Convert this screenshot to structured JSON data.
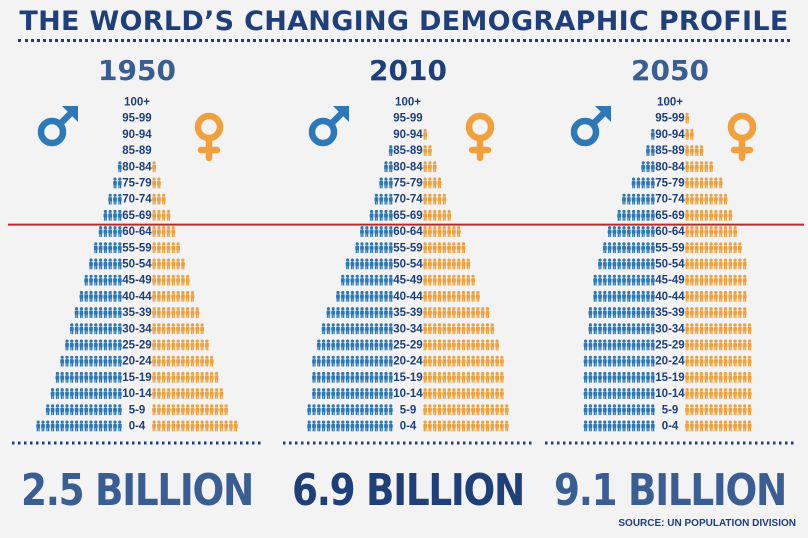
{
  "title": "THE WORLD’S CHANGING DEMOGRAPHIC PROFILE",
  "source": "SOURCE: UN POPULATION DIVISION",
  "colors": {
    "male": "#2e78b8",
    "female": "#f0a03c",
    "title": "#1e3f7a",
    "total": "#3a5e94",
    "total_highlight": "#1e3f7a",
    "divider": "#c8232c"
  },
  "icons": {
    "male": "male-symbol-icon",
    "female": "female-symbol-icon",
    "person": "person-icon"
  },
  "chart_data": {
    "type": "population-pyramid",
    "unit": "person icons per age group",
    "divider_between": [
      "65-69",
      "60-64"
    ],
    "age_groups": [
      "100+",
      "95-99",
      "90-94",
      "85-89",
      "80-84",
      "75-79",
      "70-74",
      "65-69",
      "60-64",
      "55-59",
      "50-54",
      "45-49",
      "40-44",
      "35-39",
      "30-34",
      "25-29",
      "20-24",
      "15-19",
      "10-14",
      "5-9",
      "0-4"
    ],
    "panels": [
      {
        "year": "1950",
        "total": "2.5 BILLION",
        "male": [
          0,
          0,
          0,
          0,
          1,
          2,
          3,
          4,
          5,
          6,
          7,
          8,
          9,
          10,
          11,
          12,
          13,
          14,
          15,
          16,
          18
        ],
        "female": [
          0,
          0,
          0,
          0,
          1,
          2,
          3,
          4,
          5,
          6,
          7,
          8,
          9,
          10,
          11,
          12,
          13,
          14,
          15,
          16,
          18
        ]
      },
      {
        "year": "2010",
        "total": "6.9 BILLION",
        "male": [
          0,
          0,
          0,
          1,
          2,
          3,
          4,
          5,
          7,
          8,
          10,
          11,
          12,
          14,
          15,
          16,
          17,
          17,
          17,
          18,
          18
        ],
        "female": [
          0,
          0,
          1,
          2,
          3,
          4,
          5,
          6,
          8,
          9,
          10,
          11,
          12,
          14,
          15,
          16,
          17,
          17,
          17,
          18,
          18
        ]
      },
      {
        "year": "2050",
        "total": "9.1 BILLION",
        "male": [
          0,
          0,
          1,
          2,
          3,
          5,
          7,
          8,
          10,
          11,
          12,
          13,
          13,
          14,
          14,
          15,
          15,
          15,
          15,
          15,
          15
        ],
        "female": [
          0,
          1,
          2,
          4,
          6,
          8,
          9,
          10,
          11,
          12,
          13,
          13,
          13,
          13,
          14,
          14,
          14,
          14,
          14,
          14,
          14
        ]
      }
    ]
  }
}
